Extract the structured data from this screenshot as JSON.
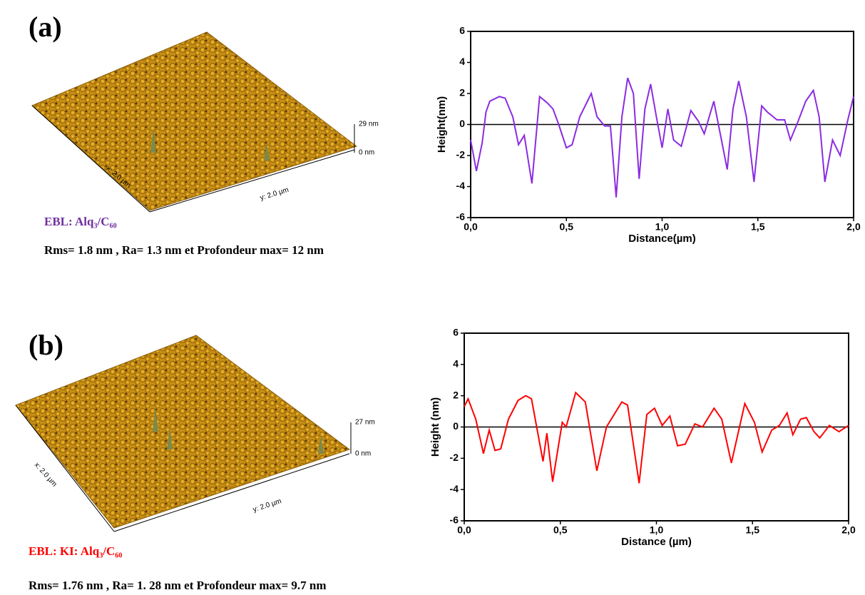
{
  "panels": [
    {
      "label": "(a)",
      "sample": "EBL: Alq₃/C₆₀",
      "stats": "Rms= 1.8 nm , Ra= 1.3 nm et Profondeur max= 12 nm",
      "afm": {
        "x_label": "x: 2.0 µm",
        "y_label": "y: 2.0 µm",
        "z_max": "29 nm",
        "z_min": "0 nm"
      }
    },
    {
      "label": "(b)",
      "sample": "EBL: KI: Alq₃/C₆₀",
      "stats": "Rms= 1.76 nm , Ra= 1. 28 nm et Profondeur max= 9.7 nm",
      "afm": {
        "x_label": "x: 2.0 µm",
        "y_label": "y: 2.0 µm",
        "z_max": "27 nm",
        "z_min": "0 nm"
      }
    }
  ],
  "chart_data": [
    {
      "type": "line",
      "x_label": "Distance(µm)",
      "y_label": "Height(nm)",
      "reference_line": 0,
      "xlim": [
        0,
        2
      ],
      "ylim": [
        -6,
        6
      ],
      "xticks": [
        {
          "value": 0,
          "label": "0,0"
        },
        {
          "value": 0.5,
          "label": "0,5"
        },
        {
          "value": 1,
          "label": "1,0"
        },
        {
          "value": 1.5,
          "label": "1,5"
        },
        {
          "value": 2,
          "label": "2,0"
        }
      ],
      "yticks": [
        6,
        4,
        2,
        0,
        -2,
        -4,
        -6
      ],
      "x": [
        0,
        0.03,
        0.06,
        0.08,
        0.1,
        0.15,
        0.18,
        0.22,
        0.25,
        0.28,
        0.32,
        0.36,
        0.4,
        0.43,
        0.46,
        0.5,
        0.53,
        0.57,
        0.63,
        0.66,
        0.7,
        0.73,
        0.76,
        0.79,
        0.82,
        0.85,
        0.88,
        0.91,
        0.94,
        0.97,
        1.0,
        1.03,
        1.06,
        1.1,
        1.15,
        1.19,
        1.22,
        1.27,
        1.31,
        1.34,
        1.37,
        1.4,
        1.44,
        1.48,
        1.52,
        1.55,
        1.6,
        1.64,
        1.67,
        1.71,
        1.75,
        1.79,
        1.82,
        1.85,
        1.89,
        1.93,
        1.97,
        2.0
      ],
      "series": [
        {
          "name": "a",
          "color": "#8b2be2",
          "values": [
            -1.0,
            -3.0,
            -1.2,
            0.8,
            1.5,
            1.8,
            1.7,
            0.5,
            -1.3,
            -0.7,
            -3.8,
            1.8,
            1.4,
            1.0,
            0.0,
            -1.5,
            -1.3,
            0.5,
            2.0,
            0.5,
            -0.1,
            -0.1,
            -4.7,
            0.5,
            3.0,
            2.0,
            -3.5,
            1.0,
            2.6,
            0.5,
            -1.5,
            1.0,
            -1.0,
            -1.4,
            0.9,
            0.2,
            -0.6,
            1.5,
            -1.0,
            -2.9,
            1.0,
            2.8,
            0.5,
            -3.7,
            1.2,
            0.8,
            0.3,
            0.3,
            -1.0,
            0.2,
            1.5,
            2.2,
            0.5,
            -3.7,
            -1.0,
            -2.0,
            0.3,
            1.8
          ]
        }
      ]
    },
    {
      "type": "line",
      "x_label": "Distance (µm)",
      "y_label": "Height (nm)",
      "reference_line": 0,
      "xlim": [
        0,
        2
      ],
      "ylim": [
        -6,
        6
      ],
      "xticks": [
        {
          "value": 0,
          "label": "0,0"
        },
        {
          "value": 0.5,
          "label": "0,5"
        },
        {
          "value": 1,
          "label": "1,0"
        },
        {
          "value": 1.5,
          "label": "1,5"
        },
        {
          "value": 2,
          "label": "2,0"
        }
      ],
      "yticks": [
        6,
        4,
        2,
        0,
        -2,
        -4,
        -6
      ],
      "x": [
        0,
        0.02,
        0.06,
        0.1,
        0.13,
        0.16,
        0.19,
        0.23,
        0.28,
        0.32,
        0.35,
        0.41,
        0.43,
        0.46,
        0.51,
        0.53,
        0.58,
        0.63,
        0.69,
        0.74,
        0.78,
        0.82,
        0.85,
        0.91,
        0.95,
        0.99,
        1.03,
        1.07,
        1.11,
        1.15,
        1.2,
        1.24,
        1.3,
        1.34,
        1.39,
        1.46,
        1.51,
        1.55,
        1.6,
        1.64,
        1.68,
        1.71,
        1.75,
        1.78,
        1.82,
        1.85,
        1.9,
        1.95,
        2.0
      ],
      "series": [
        {
          "name": "b",
          "color": "#ff0000",
          "values": [
            1.3,
            1.8,
            0.5,
            -1.7,
            -0.2,
            -1.5,
            -1.4,
            0.5,
            1.7,
            2.0,
            1.8,
            -2.2,
            -0.4,
            -3.5,
            0.3,
            0.0,
            2.2,
            1.6,
            -2.8,
            0.0,
            0.8,
            1.6,
            1.4,
            -3.6,
            0.8,
            1.2,
            0.1,
            0.7,
            -1.2,
            -1.1,
            0.2,
            0.0,
            1.2,
            0.5,
            -2.3,
            1.5,
            0.3,
            -1.6,
            -0.2,
            0.1,
            0.9,
            -0.5,
            0.5,
            0.6,
            -0.3,
            -0.7,
            0.1,
            -0.3,
            0.1
          ]
        }
      ]
    }
  ]
}
